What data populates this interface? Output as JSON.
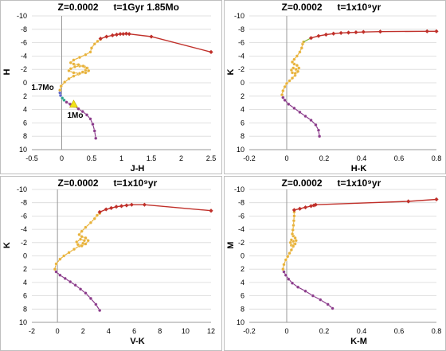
{
  "chart_data": [
    {
      "type": "scatter",
      "title_a": "Z=0.0002",
      "title_b": "t=1Gyr  1.85Mo",
      "xlabel": "J-H",
      "ylabel": "H",
      "xlim": [
        -0.5,
        2.5
      ],
      "ylim": [
        10,
        -10
      ],
      "xticks": [
        "-0.5",
        "0",
        "0.5",
        "1",
        "1.5",
        "2",
        "2.5"
      ],
      "xtick_values": [
        -0.5,
        0,
        0.5,
        1,
        1.5,
        2,
        2.5
      ],
      "yticks": [
        "-10",
        "-8",
        "-6",
        "-4",
        "-2",
        "0",
        "2",
        "4",
        "6",
        "8",
        "10"
      ],
      "ytick_values": [
        -10,
        -8,
        -6,
        -4,
        -2,
        0,
        2,
        4,
        6,
        8,
        10
      ],
      "annotations": [
        {
          "text": "1.7Mo",
          "x": -0.05,
          "y": 1.3
        },
        {
          "text": "1Mo",
          "x": 0.2,
          "y": 3.2
        }
      ],
      "series": [
        {
          "color": "#8a3a8a",
          "marker": "dot",
          "x": [
            0.57,
            0.55,
            0.52,
            0.48,
            0.42,
            0.35,
            0.28,
            0.21,
            0.14,
            0.08,
            0.04
          ],
          "y": [
            8.3,
            7.2,
            6.2,
            5.4,
            4.8,
            4.3,
            3.9,
            3.5,
            3.2,
            2.9,
            2.6
          ]
        },
        {
          "color": "#2aa58a",
          "marker": "dot",
          "x": [
            0.04,
            0.01,
            -0.02
          ],
          "y": [
            2.6,
            2.3,
            1.9
          ]
        },
        {
          "color": "#5b63c9",
          "marker": "dot",
          "x": [
            -0.02,
            -0.03,
            -0.03
          ],
          "y": [
            1.9,
            1.5,
            1.1
          ]
        },
        {
          "color": "#e8b23a",
          "marker": "dot",
          "x": [
            -0.03,
            -0.01,
            0.05,
            0.12,
            0.2,
            0.28,
            0.35,
            0.4,
            0.43,
            0.38,
            0.3,
            0.22,
            0.15,
            0.12,
            0.2,
            0.3,
            0.4,
            0.45,
            0.42,
            0.36,
            0.28,
            0.2,
            0.15,
            0.2,
            0.3,
            0.4,
            0.48,
            0.5,
            0.55,
            0.6,
            0.65
          ],
          "y": [
            1.1,
            0.5,
            -0.1,
            -0.6,
            -1.0,
            -1.3,
            -1.6,
            -1.9,
            -2.2,
            -2.4,
            -2.5,
            -2.4,
            -2.1,
            -1.8,
            -1.5,
            -1.4,
            -1.5,
            -1.8,
            -2.2,
            -2.5,
            -2.7,
            -2.8,
            -3.0,
            -3.4,
            -3.8,
            -4.2,
            -4.6,
            -5.2,
            -5.8,
            -6.2,
            -6.5
          ]
        },
        {
          "color": "#c0302a",
          "marker": "diamond",
          "x": [
            0.65,
            0.75,
            0.85,
            0.92,
            0.98,
            1.03,
            1.08,
            1.13,
            1.5,
            2.5
          ],
          "y": [
            -6.6,
            -6.9,
            -7.1,
            -7.2,
            -7.3,
            -7.3,
            -7.35,
            -7.3,
            -6.9,
            -4.6
          ]
        }
      ]
    },
    {
      "type": "scatter",
      "title_a": "Z=0.0002",
      "title_b": "t=1x10⁹yr",
      "xlabel": "H-K",
      "ylabel": "K",
      "xlim": [
        -0.2,
        0.8
      ],
      "ylim": [
        10,
        -10
      ],
      "xticks": [
        "-0.2",
        "0",
        "0.2",
        "0.4",
        "0.6",
        "0.8"
      ],
      "xtick_values": [
        -0.2,
        0,
        0.2,
        0.4,
        0.6,
        0.8
      ],
      "yticks": [
        "-10",
        "-8",
        "-6",
        "-4",
        "-2",
        "0",
        "2",
        "4",
        "6",
        "8",
        "10"
      ],
      "ytick_values": [
        -10,
        -8,
        -6,
        -4,
        -2,
        0,
        2,
        4,
        6,
        8,
        10
      ],
      "annotations": [],
      "series": [
        {
          "color": "#8a3a8a",
          "marker": "dot",
          "x": [
            0.175,
            0.17,
            0.155,
            0.13,
            0.1,
            0.07,
            0.04,
            0.01,
            -0.01,
            -0.02,
            -0.025
          ],
          "y": [
            8.0,
            7.1,
            6.3,
            5.6,
            5.0,
            4.4,
            3.8,
            3.2,
            2.6,
            2.2,
            1.8
          ]
        },
        {
          "color": "#e8b23a",
          "marker": "dot",
          "x": [
            -0.025,
            -0.02,
            -0.01,
            0.0,
            0.015,
            0.03,
            0.045,
            0.055,
            0.05,
            0.035,
            0.025,
            0.03,
            0.045,
            0.06,
            0.065,
            0.055,
            0.04,
            0.03,
            0.04,
            0.055,
            0.07,
            0.08,
            0.085,
            0.09
          ],
          "y": [
            1.8,
            1.2,
            0.6,
            0.1,
            -0.3,
            -0.7,
            -1.1,
            -1.6,
            -2.0,
            -2.2,
            -1.9,
            -1.5,
            -1.4,
            -1.7,
            -2.2,
            -2.6,
            -2.8,
            -3.1,
            -3.5,
            -4.0,
            -4.6,
            -5.2,
            -5.8,
            -6.1
          ]
        },
        {
          "color": "#8ab83a",
          "marker": "line",
          "x": [
            0.09,
            0.13
          ],
          "y": [
            -6.1,
            -6.7
          ]
        },
        {
          "color": "#c0302a",
          "marker": "diamond",
          "x": [
            0.13,
            0.17,
            0.21,
            0.25,
            0.29,
            0.33,
            0.37,
            0.41,
            0.5,
            0.75,
            0.8
          ],
          "y": [
            -6.7,
            -7.0,
            -7.2,
            -7.35,
            -7.45,
            -7.5,
            -7.55,
            -7.6,
            -7.65,
            -7.7,
            -7.7
          ]
        }
      ]
    },
    {
      "type": "scatter",
      "title_a": "Z=0.0002",
      "title_b": "t=1x10⁹yr",
      "xlabel": "V-K",
      "ylabel": "K",
      "xlim": [
        -2,
        12
      ],
      "ylim": [
        10,
        -10
      ],
      "xticks": [
        "-2",
        "0",
        "2",
        "4",
        "6",
        "8",
        "10",
        "12"
      ],
      "xtick_values": [
        -2,
        0,
        2,
        4,
        6,
        8,
        10,
        12
      ],
      "yticks": [
        "-10",
        "-8",
        "-6",
        "-4",
        "-2",
        "0",
        "2",
        "4",
        "6",
        "8",
        "10"
      ],
      "ytick_values": [
        -10,
        -8,
        -6,
        -4,
        -2,
        0,
        2,
        4,
        6,
        8,
        10
      ],
      "annotations": [],
      "series": [
        {
          "color": "#8a3a8a",
          "marker": "dot",
          "x": [
            3.3,
            3.0,
            2.6,
            2.2,
            1.8,
            1.4,
            1.0,
            0.6,
            0.2,
            -0.1,
            -0.2
          ],
          "y": [
            8.2,
            7.3,
            6.4,
            5.6,
            5.0,
            4.4,
            3.9,
            3.4,
            2.9,
            2.4,
            2.0
          ]
        },
        {
          "color": "#e8b23a",
          "marker": "dot",
          "x": [
            -0.2,
            -0.1,
            0.2,
            0.5,
            0.9,
            1.3,
            1.7,
            2.0,
            2.1,
            1.8,
            1.5,
            1.6,
            1.9,
            2.2,
            2.4,
            2.2,
            1.9,
            1.7,
            1.9,
            2.2,
            2.6,
            2.9,
            3.1,
            3.3
          ],
          "y": [
            2.0,
            1.2,
            0.5,
            0.0,
            -0.5,
            -1.0,
            -1.5,
            -1.9,
            -2.3,
            -2.5,
            -2.1,
            -1.7,
            -1.5,
            -1.8,
            -2.3,
            -2.7,
            -2.9,
            -3.2,
            -3.7,
            -4.3,
            -5.0,
            -5.6,
            -6.1,
            -6.4
          ]
        },
        {
          "color": "#c0302a",
          "marker": "diamond",
          "x": [
            3.3,
            3.8,
            4.2,
            4.6,
            5.0,
            5.4,
            5.8,
            6.8,
            12.0
          ],
          "y": [
            -6.6,
            -7.0,
            -7.2,
            -7.4,
            -7.5,
            -7.6,
            -7.7,
            -7.7,
            -6.8
          ]
        }
      ]
    },
    {
      "type": "scatter",
      "title_a": "Z=0.0002",
      "title_b": "t=1x10⁹yr",
      "xlabel": "K-M",
      "ylabel": "M",
      "xlim": [
        -0.2,
        0.8
      ],
      "ylim": [
        10,
        -10
      ],
      "xticks": [
        "-0.2",
        "0",
        "0.2",
        "0.4",
        "0.6",
        "0.8"
      ],
      "xtick_values": [
        -0.2,
        0,
        0.2,
        0.4,
        0.6,
        0.8
      ],
      "yticks": [
        "-10",
        "-8",
        "-6",
        "-4",
        "-2",
        "0",
        "2",
        "4",
        "6",
        "8",
        "10"
      ],
      "ytick_values": [
        -10,
        -8,
        -6,
        -4,
        -2,
        0,
        2,
        4,
        6,
        8,
        10
      ],
      "annotations": [],
      "series": [
        {
          "color": "#8a3a8a",
          "marker": "dot",
          "x": [
            0.245,
            0.22,
            0.18,
            0.14,
            0.1,
            0.06,
            0.03,
            0.01,
            -0.005,
            -0.015,
            -0.02
          ],
          "y": [
            7.9,
            7.3,
            6.6,
            6.0,
            5.3,
            4.7,
            4.1,
            3.5,
            2.9,
            2.4,
            2.0
          ]
        },
        {
          "color": "#e8b23a",
          "marker": "dot",
          "x": [
            -0.02,
            -0.015,
            -0.005,
            0.005,
            0.015,
            0.025,
            0.035,
            0.04,
            0.035,
            0.025,
            0.02,
            0.025,
            0.035,
            0.045,
            0.05,
            0.045,
            0.035,
            0.03,
            0.033,
            0.036,
            0.038,
            0.04,
            0.04
          ],
          "y": [
            2.0,
            1.3,
            0.6,
            0.1,
            -0.4,
            -0.9,
            -1.4,
            -1.8,
            -2.2,
            -2.4,
            -2.0,
            -1.6,
            -1.5,
            -1.8,
            -2.3,
            -2.7,
            -3.0,
            -3.3,
            -3.9,
            -4.6,
            -5.3,
            -6.0,
            -6.6
          ]
        },
        {
          "color": "#c0302a",
          "marker": "diamond",
          "x": [
            0.04,
            0.07,
            0.1,
            0.13,
            0.145,
            0.155,
            0.65,
            0.8
          ],
          "y": [
            -6.9,
            -7.1,
            -7.3,
            -7.5,
            -7.6,
            -7.7,
            -8.2,
            -8.5
          ]
        }
      ]
    }
  ]
}
